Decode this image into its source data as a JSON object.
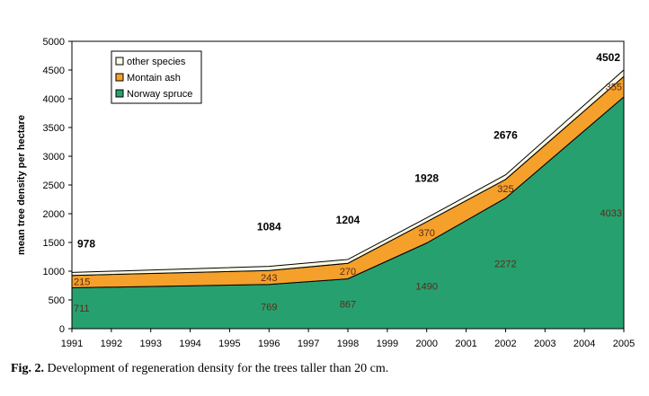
{
  "chart_data": {
    "type": "area",
    "stacked": true,
    "ylabel": "mean tree density per hectare",
    "xlabel": "",
    "ylim": [
      0,
      5000
    ],
    "yticks": [
      0,
      500,
      1000,
      1500,
      2000,
      2500,
      3000,
      3500,
      4000,
      4500,
      5000
    ],
    "xlim": [
      1991,
      2005
    ],
    "xticks": [
      1991,
      1992,
      1993,
      1994,
      1995,
      1996,
      1997,
      1998,
      1999,
      2000,
      2001,
      2002,
      2003,
      2004,
      2005
    ],
    "x": [
      1991,
      1996,
      1998,
      2000,
      2002,
      2005
    ],
    "series": [
      {
        "name": "Norway spruce",
        "color": "#27a06f",
        "values": [
          711,
          769,
          867,
          1490,
          2272,
          4033
        ],
        "labels": [
          "711",
          "769",
          "867",
          "1490",
          "2272",
          "4033"
        ]
      },
      {
        "name": "Montain ash",
        "color": "#f4a02a",
        "values": [
          215,
          243,
          270,
          370,
          325,
          355
        ],
        "labels": [
          "215",
          "243",
          "270",
          "370",
          "325",
          "355"
        ]
      },
      {
        "name": "other species",
        "color": "#fafae6",
        "values": [
          52,
          72,
          67,
          68,
          79,
          114
        ],
        "labels": []
      }
    ],
    "totals": [
      "978",
      "1084",
      "1204",
      "1928",
      "2676",
      "4502"
    ],
    "legend": {
      "position": "top-left",
      "order": [
        "other species",
        "Montain ash",
        "Norway spruce"
      ]
    },
    "grid": false,
    "plot_background": "#ffffff"
  },
  "caption": {
    "number": "Fig. 2.",
    "text": " Development of regeneration density for the trees taller than 20 cm."
  }
}
